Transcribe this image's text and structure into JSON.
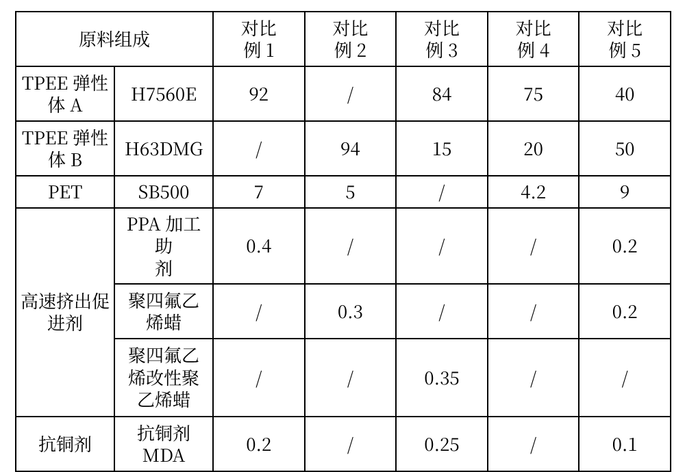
{
  "table": {
    "type": "table",
    "border_color": "#000000",
    "background_color": "#ffffff",
    "text_color": "#000000",
    "font_family": "SimSun",
    "font_size_pt": 20,
    "columns": [
      {
        "key": "label_group",
        "header_span": true
      },
      {
        "key": "label_sub",
        "header_span": true
      },
      {
        "key": "c1",
        "header_l1": "对比",
        "header_l2": "例 1"
      },
      {
        "key": "c2",
        "header_l1": "对比",
        "header_l2": "例 2"
      },
      {
        "key": "c3",
        "header_l1": "对比",
        "header_l2": "例 3"
      },
      {
        "key": "c4",
        "header_l1": "对比",
        "header_l2": "例 4"
      },
      {
        "key": "c5",
        "header_l1": "对比",
        "header_l2": "例 5"
      }
    ],
    "header_left": "原料组成",
    "rows": [
      {
        "group": "TPEE 弹性体 A",
        "sub": "H7560E",
        "v": [
          "92",
          "/",
          "84",
          "75",
          "40"
        ]
      },
      {
        "group": "TPEE 弹性体 B",
        "sub": "H63DMG",
        "v": [
          "/",
          "94",
          "15",
          "20",
          "50"
        ]
      },
      {
        "group": "PET",
        "sub": "SB500",
        "v": [
          "7",
          "5",
          "/",
          "4.2",
          "9"
        ]
      },
      {
        "group": "高速挤出促进剂",
        "sub": "PPA 加工助剂",
        "v": [
          "0.4",
          "/",
          "/",
          "/",
          "0.2"
        ]
      },
      {
        "group": "高速挤出促进剂",
        "sub": "聚四氟乙烯蜡",
        "v": [
          "/",
          "0.3",
          "/",
          "/",
          "0.2"
        ]
      },
      {
        "group": "高速挤出促进剂",
        "sub": "聚四氟乙烯改性聚乙烯蜡",
        "v": [
          "/",
          "/",
          "0.35",
          "/",
          "/"
        ]
      },
      {
        "group": "抗铜剂",
        "sub": "抗铜剂MDA",
        "v": [
          "0.2",
          "/",
          "0.25",
          "/",
          "0.1"
        ]
      }
    ],
    "group_spans": {
      "高速挤出促进剂": 3
    },
    "cell_labels": {
      "extruder_group_l1": "高速挤出促",
      "extruder_group_l2": "进剂",
      "tpeeA_l1": "TPEE 弹性",
      "tpeeA_l2": "体 A",
      "tpeeB_l1": "TPEE 弹性",
      "tpeeB_l2": "体 B",
      "ppa_l1": "PPA 加工助",
      "ppa_l2": "剂",
      "ptfe_wax_l1": "聚四氟乙",
      "ptfe_wax_l2": "烯蜡",
      "ptfe_mod_l1": "聚四氟乙",
      "ptfe_mod_l2": "烯改性聚",
      "ptfe_mod_l3": "乙烯蜡",
      "anticu_sub_l1": "抗铜剂",
      "anticu_sub_l2": "MDA"
    }
  }
}
